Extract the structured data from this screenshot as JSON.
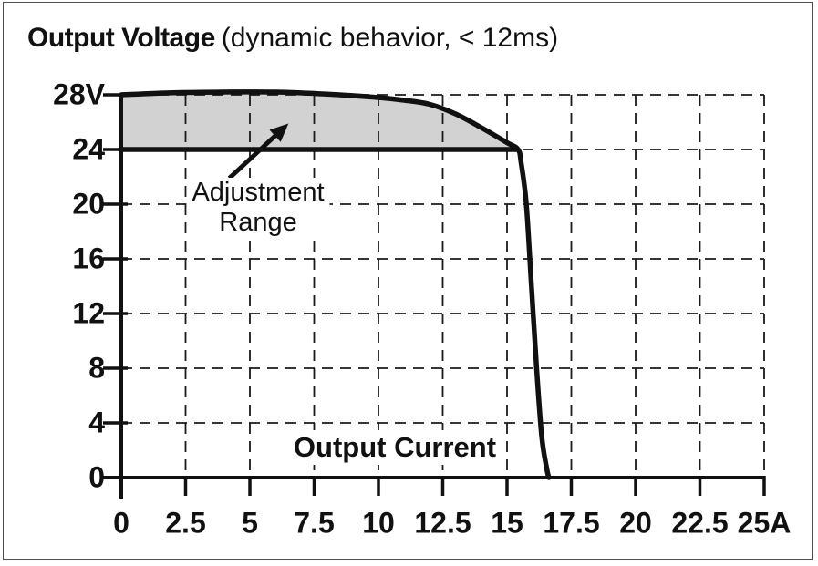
{
  "title": {
    "main": "Output Voltage",
    "subtitle": "(dynamic behavior, < 12ms)"
  },
  "colors": {
    "ink": "#111111",
    "grid": "#1a1a1a",
    "region_fill": "#d2d2d2",
    "panel_border": "#4d4d4d",
    "background": "#ffffff"
  },
  "chart_data": {
    "type": "area",
    "title": "Output Voltage (dynamic behavior, < 12ms)",
    "xlabel": "Output Current",
    "ylabel": "Output Voltage",
    "x_unit": "A",
    "y_unit": "V",
    "xlim": [
      0,
      25
    ],
    "ylim": [
      0,
      28
    ],
    "x_ticks": [
      0,
      2.5,
      5,
      7.5,
      10,
      12.5,
      15,
      17.5,
      20,
      22.5,
      25
    ],
    "x_tick_labels": [
      "0",
      "2.5",
      "5",
      "7.5",
      "10",
      "12.5",
      "15",
      "17.5",
      "20",
      "22.5",
      "25A"
    ],
    "y_ticks": [
      0,
      4,
      8,
      12,
      16,
      20,
      24,
      28
    ],
    "y_tick_labels": [
      "0",
      "4",
      "8",
      "12",
      "16",
      "20",
      "24",
      "28V"
    ],
    "grid": "dashed",
    "legend": "none",
    "series": [
      {
        "name": "upper-voltage-limit-curve",
        "points": [
          [
            0,
            28
          ],
          [
            2,
            28.15
          ],
          [
            4,
            28.2
          ],
          [
            6,
            28.2
          ],
          [
            8,
            28.05
          ],
          [
            10,
            27.8
          ],
          [
            11,
            27.6
          ],
          [
            12,
            27.3
          ],
          [
            13,
            26.6
          ],
          [
            14,
            25.6
          ],
          [
            15,
            24.5
          ],
          [
            15.43,
            24
          ]
        ]
      },
      {
        "name": "current-limit-drop",
        "points": [
          [
            15.43,
            24
          ],
          [
            15.55,
            23
          ],
          [
            15.75,
            20
          ],
          [
            15.95,
            14
          ],
          [
            16.15,
            8
          ],
          [
            16.35,
            3
          ],
          [
            16.55,
            0.6
          ],
          [
            16.63,
            0
          ]
        ]
      },
      {
        "name": "lower-adjustment-limit-24V",
        "points": [
          [
            0,
            24
          ],
          [
            15.43,
            24
          ]
        ]
      }
    ],
    "adjustment_region": {
      "lower_voltage": 24,
      "x_range": [
        0,
        15.43
      ],
      "fill": "#d2d2d2"
    },
    "annotation": {
      "text_line1": "Adjustment",
      "text_line2": "Range",
      "arrow_from": [
        4.2,
        21.9
      ],
      "arrow_to": [
        6.5,
        25.9
      ]
    }
  }
}
